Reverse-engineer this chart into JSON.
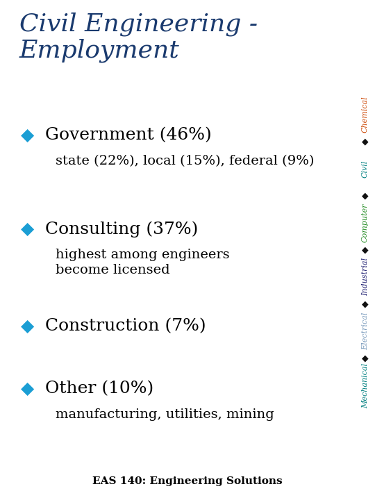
{
  "title_line1": "Civil Engineering -",
  "title_line2": "Employment",
  "title_color": "#1a3a6e",
  "title_fontsize": 26,
  "background_color": "#ffffff",
  "bullet_color": "#1b9ed4",
  "bullet_char": "◆",
  "items": [
    {
      "main": "Government (46%)",
      "sub": [
        "state (22%), local (15%), federal (9%)"
      ]
    },
    {
      "main": "Consulting (37%)",
      "sub": [
        "highest among engineers",
        "become licensed"
      ]
    },
    {
      "main": "Construction (7%)",
      "sub": []
    },
    {
      "main": "Other (10%)",
      "sub": [
        "manufacturing, utilities, mining"
      ]
    }
  ],
  "main_fontsize": 18,
  "sub_fontsize": 14,
  "footer": "EAS 140: Engineering Solutions",
  "footer_fontsize": 11,
  "sidebar_labels": [
    "Chemical",
    "Civil",
    "Computer",
    "Industrial",
    "Electrical",
    "Mechanical"
  ],
  "sidebar_colors": [
    "#cc4400",
    "#008080",
    "#228b22",
    "#1a1a6e",
    "#7799bb",
    "#008080"
  ],
  "sidebar_diamond_color": "#111111",
  "sidebar_fontsize": 8
}
